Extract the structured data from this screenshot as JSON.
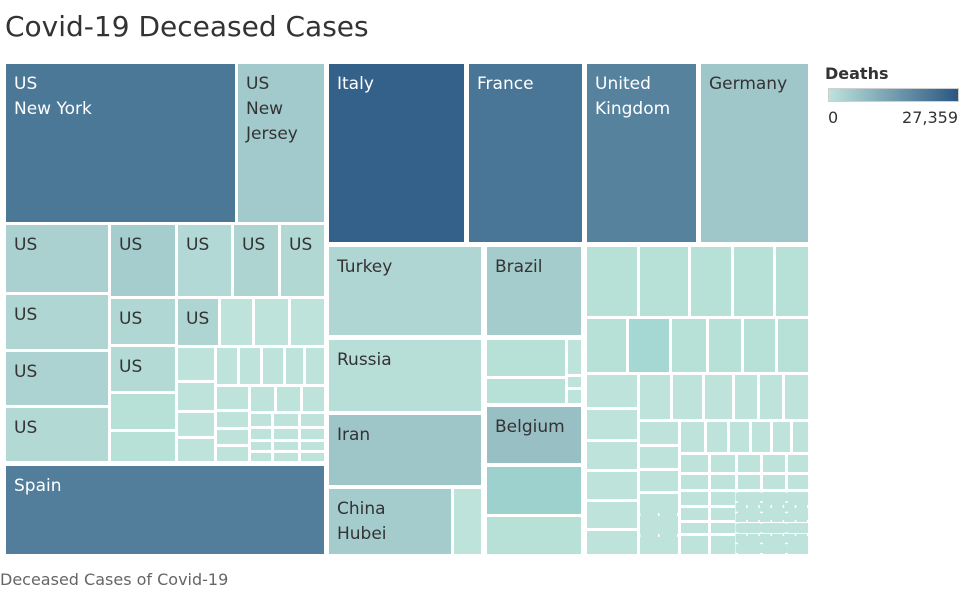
{
  "title": "Covid-19 Deceased Cases",
  "caption": "Deceased Cases of Covid-19",
  "legend": {
    "title": "Deaths",
    "min_label": "0",
    "max_label": "27,359",
    "min_color": "#bde3db",
    "max_color": "#2a5783"
  },
  "chart_data": {
    "type": "treemap",
    "title": "Covid-19 Deceased Cases",
    "measure": "Deaths",
    "color_range": [
      0,
      27359
    ],
    "labeled_nodes": [
      {
        "label": [
          "US",
          "New York"
        ],
        "value": 21000
      },
      {
        "label": [
          "Spain"
        ],
        "value": 20000
      },
      {
        "label": [
          "Italy"
        ],
        "value": 25500
      },
      {
        "label": [
          "France"
        ],
        "value": 21500
      },
      {
        "label": [
          "United",
          "Kingdom"
        ],
        "value": 19000
      },
      {
        "label": [
          "Germany"
        ],
        "value": 5500
      },
      {
        "label": [
          "US",
          "New",
          "Jersey"
        ],
        "value": 5000
      },
      {
        "label": [
          "Turkey"
        ],
        "value": 2500
      },
      {
        "label": [
          "Brazil"
        ],
        "value": 4500
      },
      {
        "label": [
          "Russia"
        ],
        "value": 1000
      },
      {
        "label": [
          "Iran"
        ],
        "value": 5800
      },
      {
        "label": [
          "Belgium"
        ],
        "value": 7000
      },
      {
        "label": [
          "China",
          "Hubei"
        ],
        "value": 4500
      },
      {
        "label": [
          "US"
        ],
        "value": 3500
      },
      {
        "label": [
          "US"
        ],
        "value": 4300
      },
      {
        "label": [
          "US"
        ],
        "value": 2000
      },
      {
        "label": [
          "US"
        ],
        "value": 3000
      },
      {
        "label": [
          "US"
        ],
        "value": 2100
      },
      {
        "label": [
          "US"
        ],
        "value": 2500
      },
      {
        "label": [
          "US"
        ],
        "value": 2300
      },
      {
        "label": [
          "US"
        ],
        "value": 2700
      },
      {
        "label": [
          "US"
        ],
        "value": 3200
      },
      {
        "label": [
          "US"
        ],
        "value": 1800
      },
      {
        "label": [
          "US"
        ],
        "value": 1900
      }
    ]
  }
}
